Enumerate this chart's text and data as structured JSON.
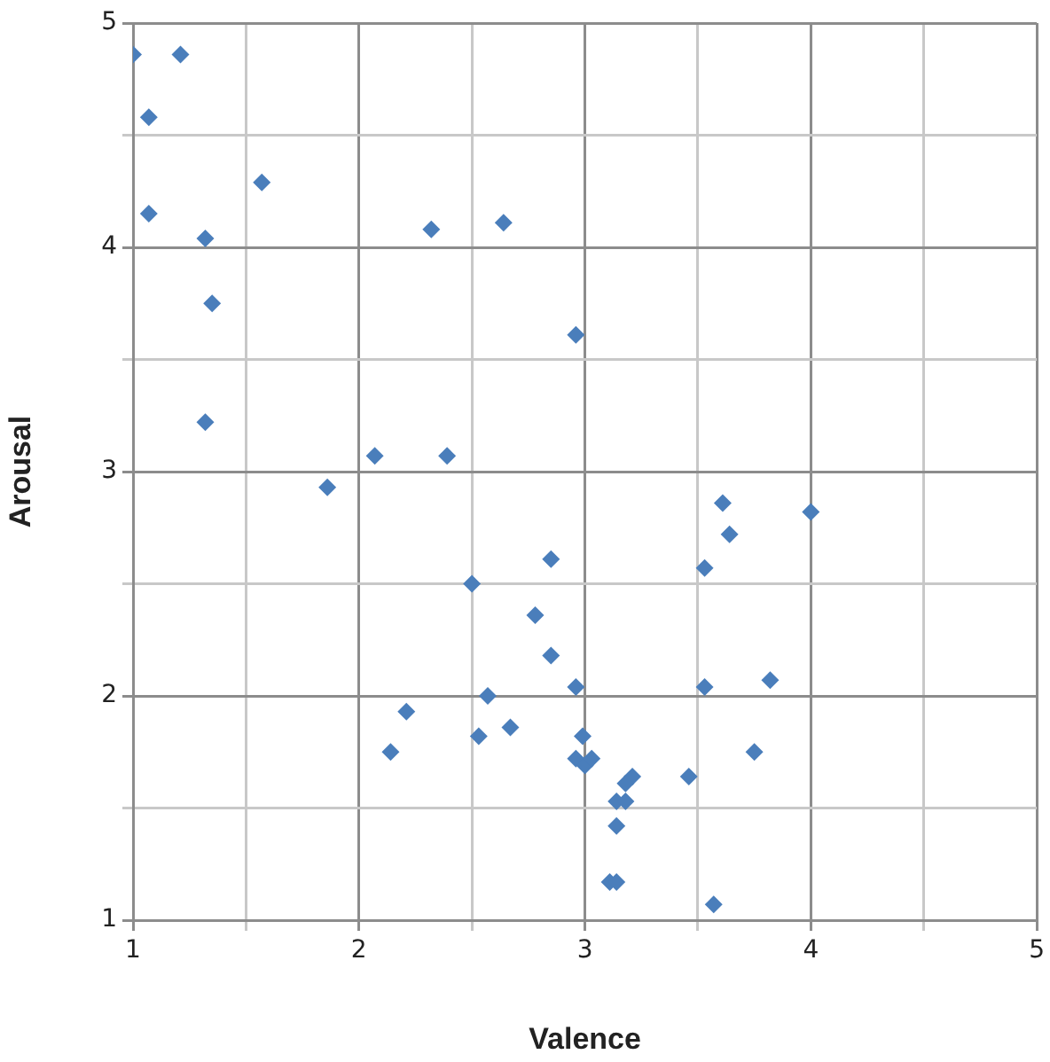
{
  "chart_data": {
    "type": "scatter",
    "xlabel": "Valence",
    "ylabel": "Arousal",
    "color": "#4a7ebb",
    "marker": "diamond",
    "grid": true,
    "xlim": [
      1,
      5
    ],
    "xticks": [
      1,
      {
        "value": 1.5,
        "label": null
      },
      2,
      {
        "value": 2.5,
        "label": null
      },
      3,
      {
        "value": 3.5,
        "label": null
      },
      4,
      {
        "value": 4.5,
        "label": null
      },
      5
    ],
    "ylim": [
      1,
      5
    ],
    "yticks": [
      1,
      {
        "value": 1.5,
        "label": null
      },
      2,
      {
        "value": 2.5,
        "label": null
      },
      3,
      {
        "value": 3.5,
        "label": null
      },
      4,
      {
        "value": 4.5,
        "label": null
      },
      5
    ],
    "x": [
      1.0,
      1.21,
      1.07,
      1.07,
      1.57,
      1.32,
      1.35,
      1.32,
      1.86,
      2.07,
      2.39,
      2.32,
      2.64,
      2.96,
      3.61,
      4.0,
      3.64,
      3.53,
      2.85,
      2.78,
      2.85,
      2.96,
      3.53,
      3.82,
      2.99,
      2.96,
      3.0,
      3.03,
      3.75,
      3.46,
      3.21,
      3.18,
      3.14,
      3.18,
      3.14,
      3.11,
      3.14,
      3.57,
      2.5,
      2.57,
      2.21,
      2.67,
      2.53,
      2.14
    ],
    "values": [
      4.86,
      4.86,
      4.58,
      4.15,
      4.29,
      4.04,
      3.75,
      3.22,
      2.93,
      3.07,
      3.07,
      4.08,
      4.11,
      3.61,
      2.86,
      2.82,
      2.72,
      2.57,
      2.61,
      2.36,
      2.18,
      2.04,
      2.04,
      2.07,
      1.82,
      1.72,
      1.69,
      1.72,
      1.75,
      1.64,
      1.64,
      1.61,
      1.53,
      1.53,
      1.42,
      1.17,
      1.17,
      1.07,
      2.5,
      2.0,
      1.93,
      1.86,
      1.82,
      1.75
    ]
  }
}
